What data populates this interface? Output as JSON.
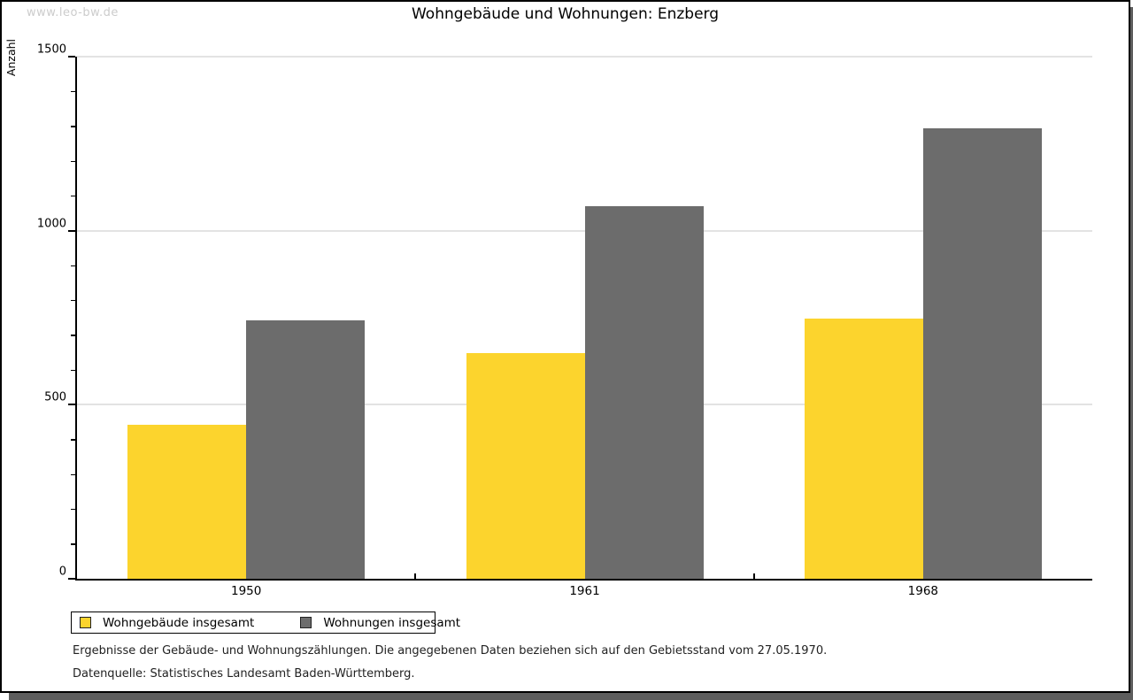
{
  "watermark": "www.leo-bw.de",
  "chart_data": {
    "type": "bar",
    "title": "Wohngebäude und Wohnungen: Enzberg",
    "categories": [
      "1950",
      "1961",
      "1968"
    ],
    "series": [
      {
        "name": "Wohngebäude insgesamt",
        "color": "#FCD42D",
        "values": [
          442,
          648,
          748
        ]
      },
      {
        "name": "Wohnungen insgesamt",
        "color": "#6C6C6C",
        "values": [
          743,
          1070,
          1294
        ]
      }
    ],
    "xlabel": "",
    "ylabel": "Anzahl",
    "ylim": [
      0,
      1500
    ],
    "y_major_step": 500,
    "y_minor_step": 100,
    "grid": true,
    "legend_position": "bottom-left"
  },
  "footer": {
    "line1": "Ergebnisse der Gebäude- und Wohnungszählungen. Die angegebenen Daten beziehen sich auf den Gebietsstand vom 27.05.1970.",
    "line2": "Datenquelle: Statistisches Landesamt Baden-Württemberg."
  },
  "colors": {
    "frame_border": "#000000",
    "frame_shadow": "#5e5e5e",
    "gridline": "#e3e3e3",
    "watermark": "#cccccc",
    "series_yellow": "#FCD42D",
    "series_gray": "#6C6C6C"
  }
}
